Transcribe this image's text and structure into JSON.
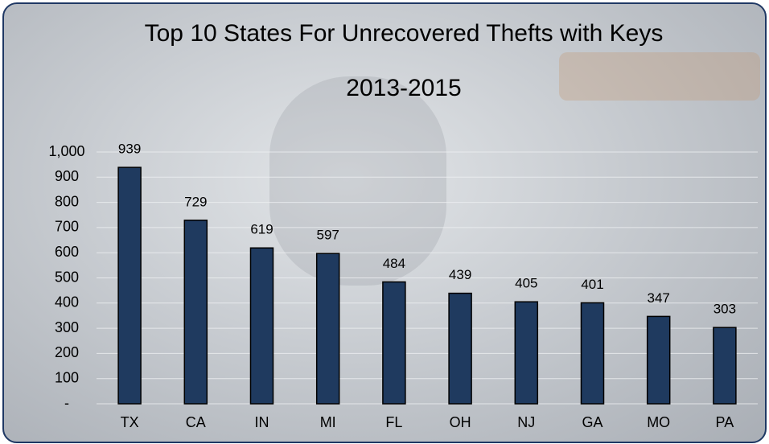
{
  "chart_data": {
    "type": "bar",
    "title": "Top 10 States For Unrecovered Thefts with Keys",
    "subtitle": "2013-2015",
    "categories": [
      "TX",
      "CA",
      "IN",
      "MI",
      "FL",
      "OH",
      "NJ",
      "GA",
      "MO",
      "PA"
    ],
    "values": [
      939,
      729,
      619,
      597,
      484,
      439,
      405,
      401,
      347,
      303
    ],
    "color": "#1f3a5f",
    "ylim": [
      0,
      1000
    ],
    "yticks": [
      {
        "value": 0,
        "label": "-"
      },
      100,
      200,
      300,
      400,
      500,
      600,
      700,
      800,
      900,
      {
        "value": 1000,
        "label": "1,000"
      }
    ],
    "grid": true
  }
}
